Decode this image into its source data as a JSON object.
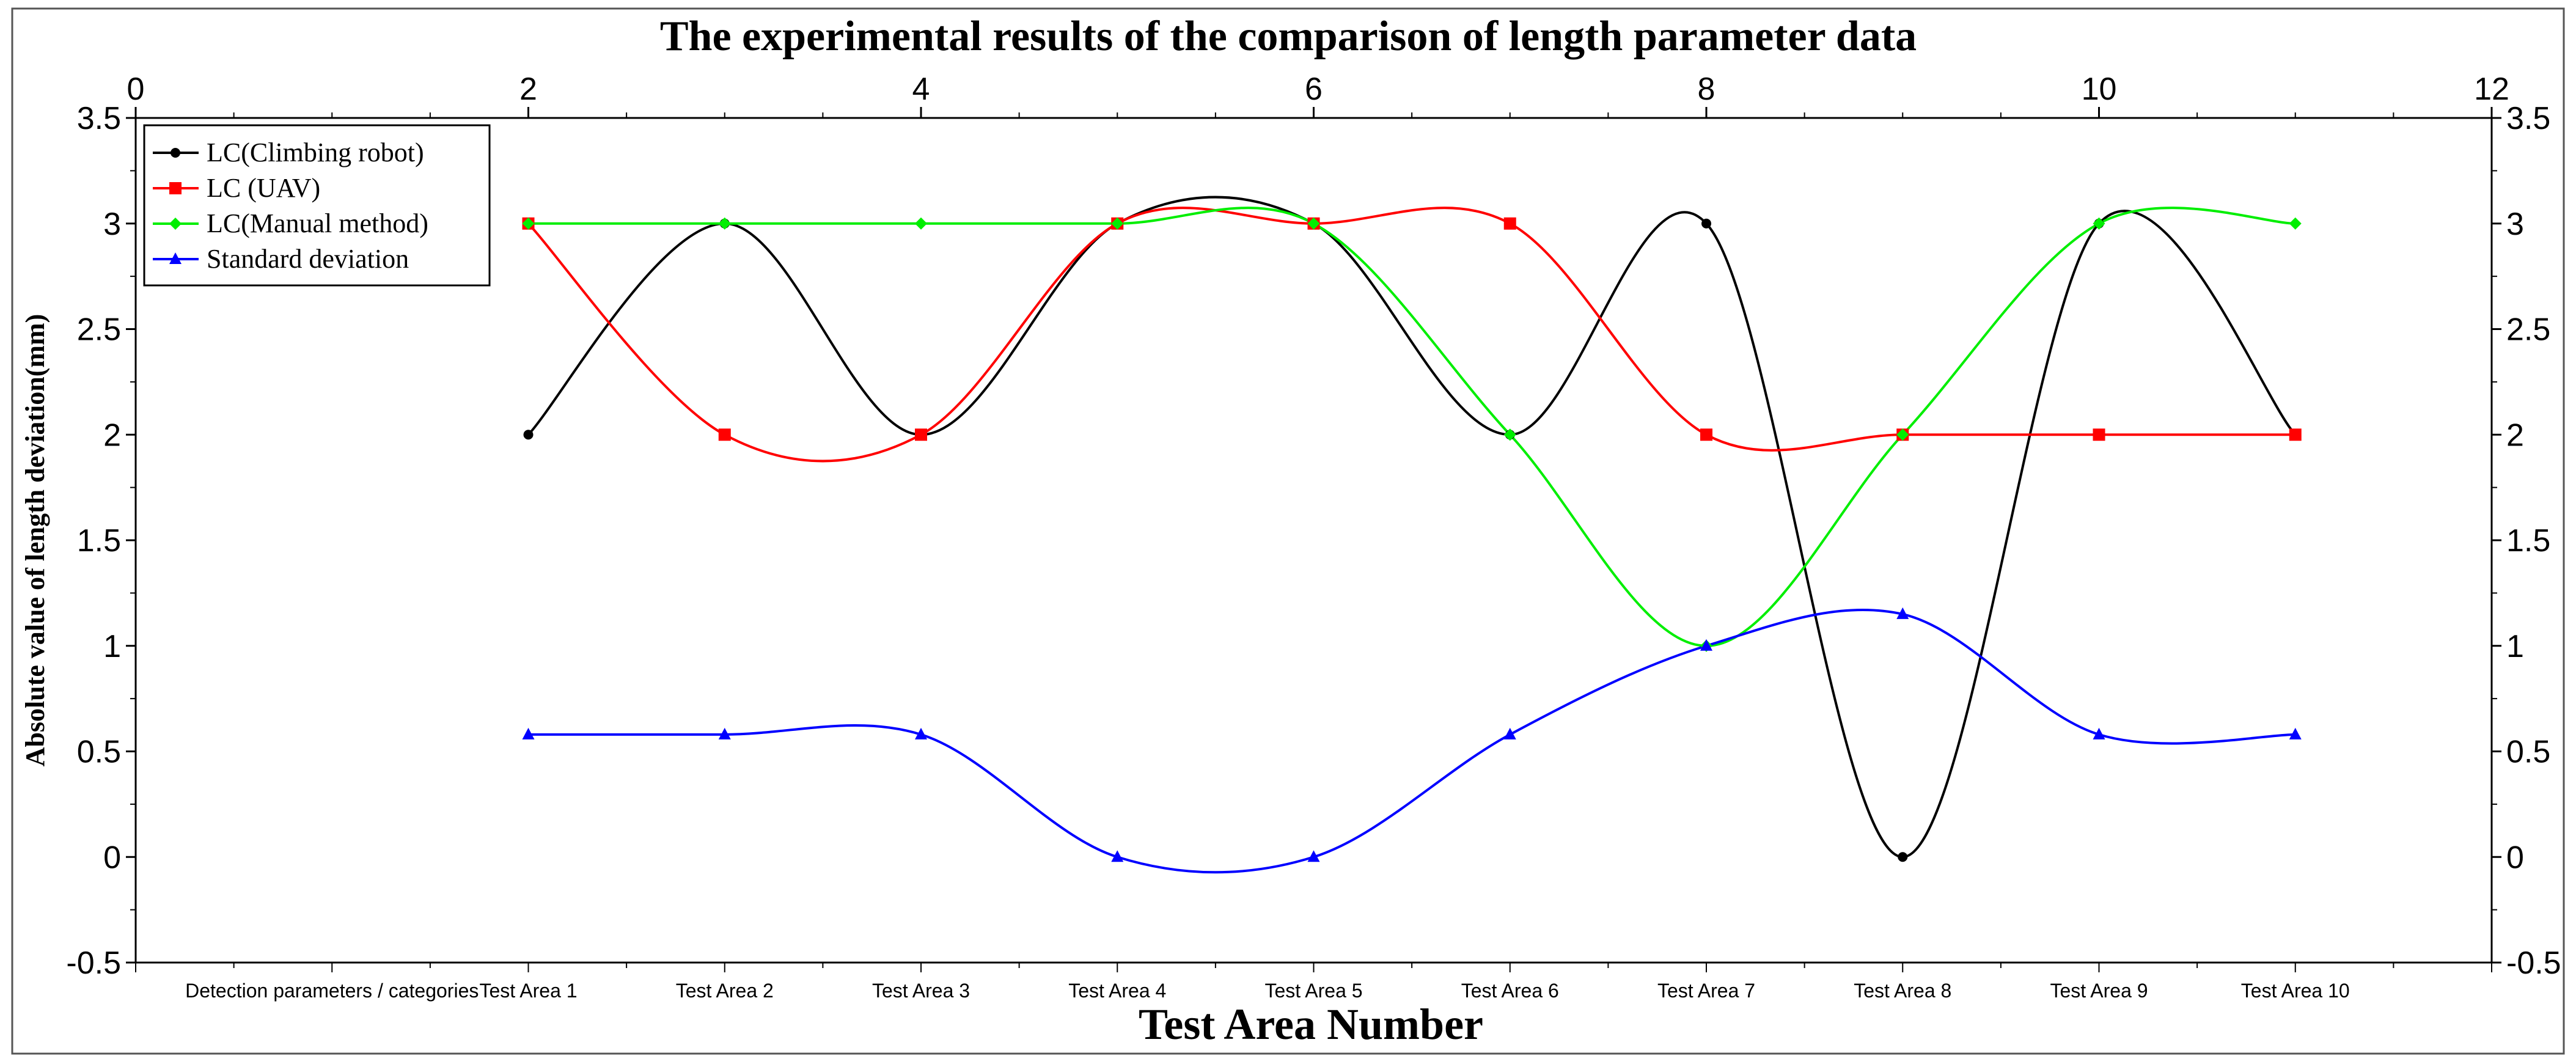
{
  "chart_data": {
    "type": "line",
    "title": "The experimental results of the comparison of length parameter data",
    "xlabel": "Test Area Number",
    "ylabel": "Absolute value of length deviation(mm)",
    "top_axis": {
      "min": 0,
      "max": 12,
      "ticks": [
        0,
        2,
        4,
        6,
        8,
        10,
        12
      ]
    },
    "ylim": [
      -0.5,
      3.5
    ],
    "yticks": [
      -0.5,
      0,
      0.5,
      1,
      1.5,
      2,
      2.5,
      3,
      3.5
    ],
    "categories": [
      "Detection parameters / categories",
      "Test Area 1",
      "Test Area 2",
      "Test Area 3",
      "Test Area 4",
      "Test Area 5",
      "Test Area 6",
      "Test Area 7",
      "Test Area 8",
      "Test Area 9",
      "Test Area 10"
    ],
    "x": [
      2,
      3,
      4,
      5,
      6,
      7,
      8,
      9,
      10,
      11
    ],
    "series": [
      {
        "name": "LC(Climbing robot)",
        "color": "#000000",
        "marker": "circle",
        "values": [
          2,
          3,
          2,
          3,
          3,
          2,
          3,
          0,
          3,
          2
        ]
      },
      {
        "name": "LC (UAV)",
        "color": "#ff0000",
        "marker": "square",
        "values": [
          3,
          2,
          2,
          3,
          3,
          3,
          2,
          2,
          2,
          2
        ]
      },
      {
        "name": "LC(Manual method)",
        "color": "#00ee00",
        "marker": "diamond",
        "values": [
          3,
          3,
          3,
          3,
          3,
          2,
          1,
          2,
          3,
          3
        ]
      },
      {
        "name": "Standard deviation",
        "color": "#0000ff",
        "marker": "triangle",
        "values": [
          0.58,
          0.58,
          0.58,
          0,
          0,
          0.58,
          1,
          1.15,
          0.58,
          0.58
        ]
      }
    ],
    "legend": "top-left",
    "grid": false
  }
}
